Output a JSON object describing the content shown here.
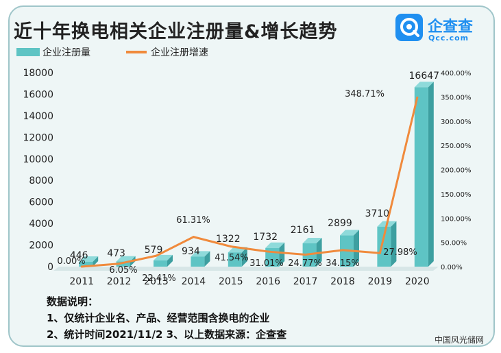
{
  "title": "近十年换电相关企业注册量&增长趋势",
  "logo": {
    "name": "企查查",
    "domain": "Qcc.com"
  },
  "chart_data": {
    "type": "bar",
    "categories": [
      "2011",
      "2012",
      "2013",
      "2014",
      "2015",
      "2016",
      "2017",
      "2018",
      "2019",
      "2020"
    ],
    "series": [
      {
        "name": "企业注册量",
        "type": "bar",
        "axis": "left",
        "values": [
          446,
          473,
          579,
          934,
          1322,
          1732,
          2161,
          2899,
          3710,
          16647
        ],
        "labels": [
          "446",
          "473",
          "579",
          "934",
          "1322",
          "1732",
          "2161",
          "2899",
          "3710",
          "16647"
        ]
      },
      {
        "name": "企业注册增速",
        "type": "line",
        "axis": "right",
        "values": [
          0.0,
          6.05,
          22.41,
          61.31,
          41.54,
          31.01,
          24.77,
          34.15,
          27.98,
          348.71
        ],
        "labels": [
          "0.00%",
          "6.05%",
          "22.41%",
          "61.31%",
          "41.54%",
          "31.01%",
          "24.77%",
          "34.15%",
          "27.98%",
          "348.71%"
        ]
      }
    ],
    "y_left": {
      "ylim": [
        0,
        18000
      ],
      "ticks": [
        "0",
        "2000",
        "4000",
        "6000",
        "8000",
        "10000",
        "12000",
        "14000",
        "16000",
        "18000"
      ]
    },
    "y_right": {
      "ylim": [
        0,
        400
      ],
      "ticks": [
        "0.00%",
        "50.00%",
        "100.00%",
        "150.00%",
        "200.00%",
        "250.00%",
        "300.00%",
        "350.00%",
        "400.00%"
      ]
    },
    "legend_position": "top-left",
    "grid": false,
    "colors": {
      "bar": "#5ec4c4",
      "bar_side": "#3d9fa0",
      "line": "#f08a3c"
    }
  },
  "notes": {
    "heading": "数据说明：",
    "line1": "1、仅统计企业名、产品、经营范围含换电的企业",
    "line2": "2、统计时间2021/11/2   3、以上数据来源：企查查"
  },
  "watermark": "中国风光储网"
}
